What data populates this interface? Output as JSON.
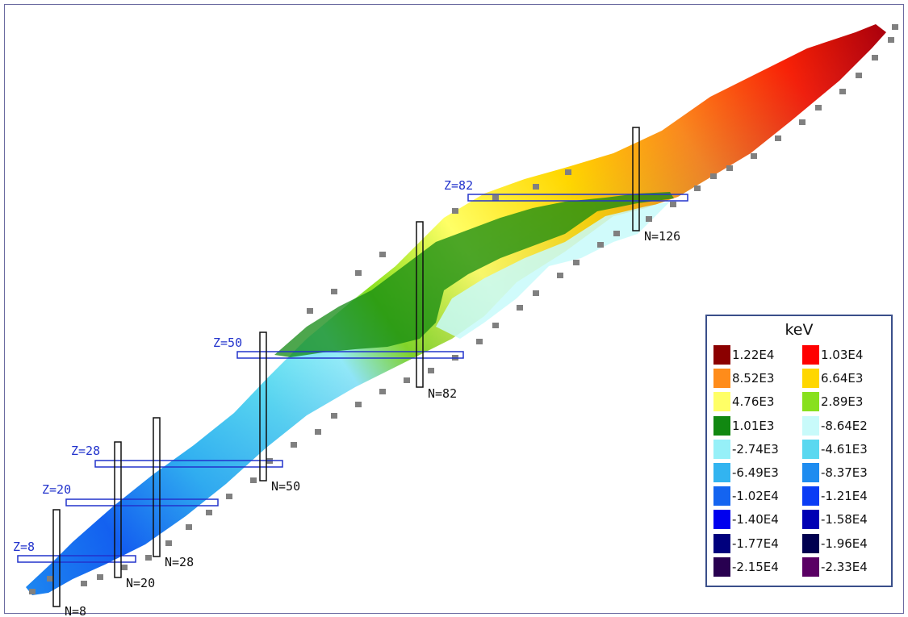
{
  "chart_data": {
    "type": "heatmap",
    "xlabel": "",
    "ylabel": "",
    "legend": {
      "title": "keV",
      "placement": "bottom-right",
      "entries": [
        {
          "label": "1.22E4",
          "color": "#8b0000"
        },
        {
          "label": "1.03E4",
          "color": "#ff0000"
        },
        {
          "label": "8.52E3",
          "color": "#ff8c1a"
        },
        {
          "label": "6.64E3",
          "color": "#ffd700"
        },
        {
          "label": "4.76E3",
          "color": "#ffff66"
        },
        {
          "label": "2.89E3",
          "color": "#88e01e"
        },
        {
          "label": "1.01E3",
          "color": "#118811"
        },
        {
          "label": "-8.64E2",
          "color": "#c8fafa"
        },
        {
          "label": "-2.74E3",
          "color": "#96f0f8"
        },
        {
          "label": "-4.61E3",
          "color": "#5ad8f0"
        },
        {
          "label": "-6.49E3",
          "color": "#32b4f0"
        },
        {
          "label": "-8.37E3",
          "color": "#1e8cf0"
        },
        {
          "label": "-1.02E4",
          "color": "#1464f0"
        },
        {
          "label": "-1.21E4",
          "color": "#0a3cf5"
        },
        {
          "label": "-1.40E4",
          "color": "#0000ee"
        },
        {
          "label": "-1.58E4",
          "color": "#0000b4"
        },
        {
          "label": "-1.77E4",
          "color": "#00007d"
        },
        {
          "label": "-1.96E4",
          "color": "#000050"
        },
        {
          "label": "-2.15E4",
          "color": "#280050"
        },
        {
          "label": "-2.33E4",
          "color": "#5a0064"
        }
      ]
    },
    "magic_numbers": {
      "Z": [
        "Z=8",
        "Z=20",
        "Z=28",
        "Z=50",
        "Z=82"
      ],
      "N": [
        "N=8",
        "N=20",
        "N=28",
        "N=50",
        "N=82",
        "N=126"
      ]
    },
    "colors": {
      "z_line": "#2233cc",
      "n_line": "#111111",
      "no_data": "#808080"
    }
  }
}
